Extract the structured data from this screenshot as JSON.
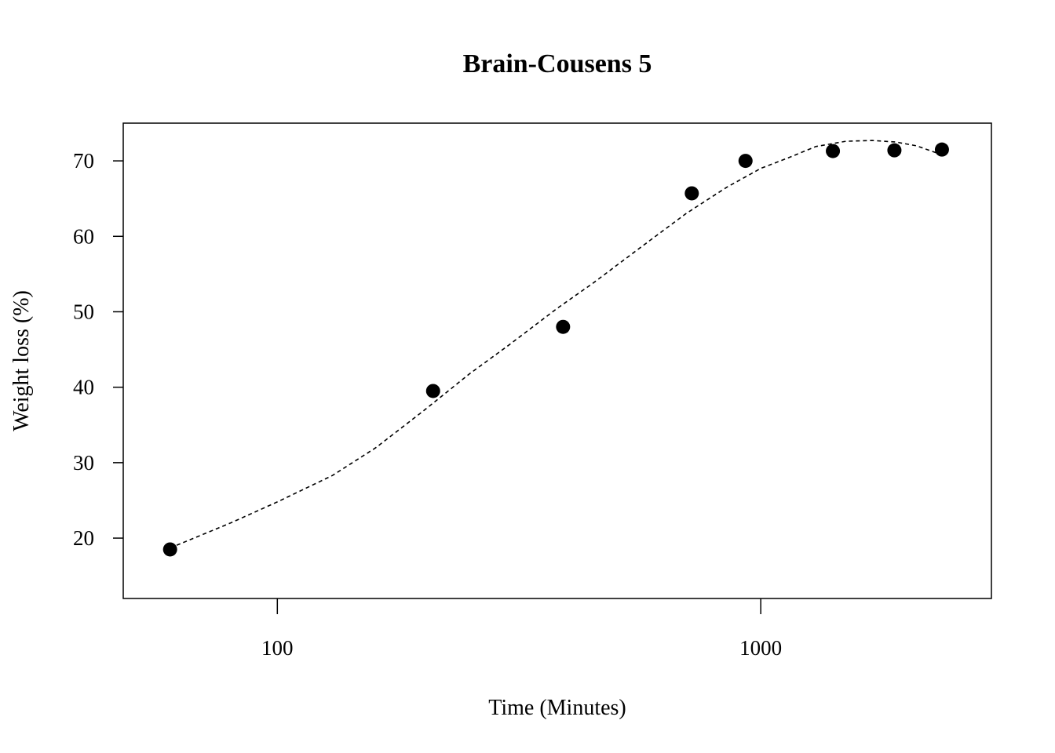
{
  "chart_data": {
    "type": "scatter",
    "title": "Brain-Cousens 5",
    "xlabel": "Time (Minutes)",
    "ylabel": "Weight loss (%)",
    "x_scale": "log",
    "xlim": [
      48,
      3000
    ],
    "ylim": [
      12,
      75
    ],
    "x_ticks": [
      100,
      1000
    ],
    "x_tick_labels": [
      "100",
      "1000"
    ],
    "y_ticks": [
      20,
      30,
      40,
      50,
      60,
      70
    ],
    "y_tick_labels": [
      "20",
      "30",
      "40",
      "50",
      "60",
      "70"
    ],
    "grid": false,
    "legend": "none",
    "series": [
      {
        "kind": "points",
        "marker": "filled-circle",
        "x": [
          60,
          210,
          390,
          720,
          930,
          1410,
          1890,
          2370
        ],
        "y": [
          18.5,
          39.5,
          48.0,
          65.7,
          70.0,
          71.3,
          71.4,
          71.5
        ]
      },
      {
        "kind": "fitted-curve",
        "style": "dashed",
        "x": [
          60,
          80,
          100,
          130,
          160,
          200,
          250,
          300,
          380,
          450,
          550,
          700,
          850,
          1000,
          1150,
          1300,
          1500,
          1700,
          1900,
          2100,
          2370
        ],
        "y": [
          18.7,
          22.0,
          24.8,
          28.3,
          32.0,
          36.8,
          41.8,
          45.5,
          50.5,
          53.8,
          58.0,
          63.0,
          66.5,
          69.0,
          70.5,
          71.9,
          72.6,
          72.7,
          72.5,
          72.0,
          70.8
        ]
      }
    ],
    "colors": {
      "points": "#000000",
      "curve": "#000000",
      "frame": "#000000"
    }
  }
}
